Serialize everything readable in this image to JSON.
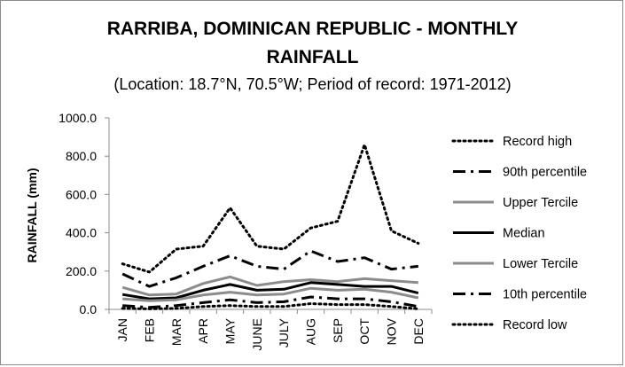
{
  "chart_data": {
    "type": "line",
    "title_line1": "RARRIBA, DOMINICAN REPUBLIC - MONTHLY",
    "title_line2": "RAINFALL",
    "subtitle": "(Location: 18.7°N, 70.5°W; Period of record: 1971-2012)",
    "xlabel": "",
    "ylabel": "RAINFALL (mm)",
    "ylim": [
      0,
      1000
    ],
    "yticks": [
      "0.0",
      "200.0",
      "400.0",
      "600.0",
      "800.0",
      "1000.0"
    ],
    "categories": [
      "JAN",
      "FEB",
      "MAR",
      "APR",
      "MAY",
      "JUNE",
      "JULY",
      "AUG",
      "SEP",
      "OCT",
      "NOV",
      "DEC"
    ],
    "grid": false,
    "legend_position": "right",
    "series": [
      {
        "name": "Record high",
        "style": "dotted",
        "color": "#000000",
        "values": [
          238,
          195,
          315,
          330,
          530,
          330,
          315,
          425,
          460,
          860,
          410,
          345
        ]
      },
      {
        "name": "90th percentile",
        "style": "dashdot",
        "color": "#000000",
        "values": [
          185,
          120,
          165,
          225,
          280,
          225,
          210,
          305,
          250,
          270,
          210,
          225
        ]
      },
      {
        "name": "Upper Tercile",
        "style": "solid",
        "color": "#8c8c8c",
        "values": [
          115,
          75,
          80,
          135,
          170,
          125,
          145,
          155,
          145,
          160,
          150,
          140
        ]
      },
      {
        "name": "Median",
        "style": "solid",
        "color": "#000000",
        "values": [
          78,
          55,
          60,
          100,
          130,
          100,
          105,
          140,
          130,
          120,
          120,
          85
        ]
      },
      {
        "name": "Lower Tercile",
        "style": "solid",
        "color": "#8c8c8c",
        "values": [
          55,
          45,
          50,
          75,
          90,
          75,
          80,
          110,
          100,
          105,
          90,
          60
        ]
      },
      {
        "name": "10th percentile",
        "style": "dashdot",
        "color": "#000000",
        "values": [
          20,
          10,
          20,
          35,
          50,
          35,
          40,
          65,
          55,
          55,
          40,
          15
        ]
      },
      {
        "name": "Record low",
        "style": "dotted",
        "color": "#000000",
        "values": [
          5,
          3,
          5,
          15,
          20,
          15,
          15,
          30,
          25,
          25,
          15,
          3
        ]
      }
    ]
  }
}
